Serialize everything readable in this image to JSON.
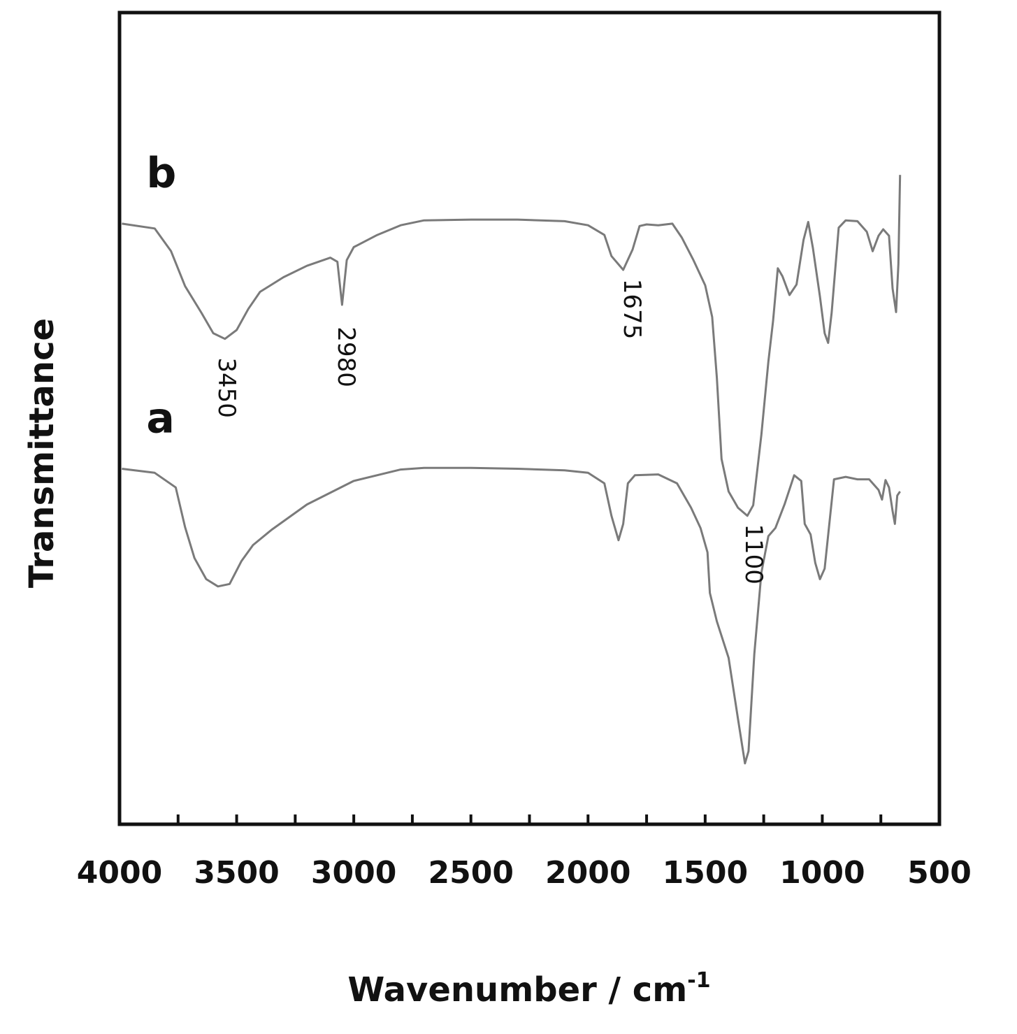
{
  "chart_data": {
    "type": "line",
    "title": "",
    "xlabel": "Wavenumber / cm",
    "xlabel_superscript": "-1",
    "ylabel": "Transmittance",
    "xlim": [
      4000,
      500
    ],
    "ylim": [
      0,
      100
    ],
    "x_reversed": true,
    "y_ticks_shown": false,
    "grid": false,
    "x_ticks": [
      4000,
      3500,
      3000,
      2500,
      2000,
      1500,
      1000,
      500
    ],
    "x_tick_labels": [
      "4000",
      "3500",
      "3000",
      "2500",
      "2000",
      "1500",
      "1000",
      "500"
    ],
    "line_color": "#7a7a7a",
    "series": [
      {
        "name": "b",
        "points": [
          [
            3990,
            74.0
          ],
          [
            3850,
            73.4
          ],
          [
            3780,
            70.6
          ],
          [
            3720,
            66.3
          ],
          [
            3650,
            63.0
          ],
          [
            3600,
            60.5
          ],
          [
            3550,
            59.8
          ],
          [
            3500,
            60.9
          ],
          [
            3450,
            63.5
          ],
          [
            3400,
            65.6
          ],
          [
            3300,
            67.4
          ],
          [
            3200,
            68.8
          ],
          [
            3100,
            69.8
          ],
          [
            3070,
            69.3
          ],
          [
            3050,
            64.0
          ],
          [
            3030,
            69.5
          ],
          [
            3000,
            71.1
          ],
          [
            2900,
            72.6
          ],
          [
            2800,
            73.8
          ],
          [
            2700,
            74.4
          ],
          [
            2500,
            74.5
          ],
          [
            2300,
            74.5
          ],
          [
            2100,
            74.3
          ],
          [
            2000,
            73.8
          ],
          [
            1930,
            72.6
          ],
          [
            1900,
            70.0
          ],
          [
            1850,
            68.3
          ],
          [
            1810,
            70.8
          ],
          [
            1780,
            73.7
          ],
          [
            1750,
            73.9
          ],
          [
            1700,
            73.8
          ],
          [
            1640,
            74.0
          ],
          [
            1600,
            72.3
          ],
          [
            1550,
            69.5
          ],
          [
            1500,
            66.4
          ],
          [
            1470,
            62.5
          ],
          [
            1450,
            55.0
          ],
          [
            1430,
            45.0
          ],
          [
            1400,
            41.0
          ],
          [
            1360,
            39.0
          ],
          [
            1320,
            38.0
          ],
          [
            1295,
            39.3
          ],
          [
            1260,
            48.0
          ],
          [
            1230,
            57.0
          ],
          [
            1210,
            62.0
          ],
          [
            1190,
            68.5
          ],
          [
            1170,
            67.5
          ],
          [
            1140,
            65.2
          ],
          [
            1110,
            66.5
          ],
          [
            1080,
            72.0
          ],
          [
            1060,
            74.2
          ],
          [
            1040,
            71.0
          ],
          [
            1010,
            65.0
          ],
          [
            990,
            60.5
          ],
          [
            975,
            59.3
          ],
          [
            960,
            63.0
          ],
          [
            930,
            73.5
          ],
          [
            900,
            74.4
          ],
          [
            850,
            74.3
          ],
          [
            810,
            73.0
          ],
          [
            785,
            70.6
          ],
          [
            760,
            72.5
          ],
          [
            740,
            73.3
          ],
          [
            715,
            72.5
          ],
          [
            700,
            66.0
          ],
          [
            685,
            63.1
          ],
          [
            675,
            69.0
          ],
          [
            668,
            80.0
          ]
        ]
      },
      {
        "name": "a",
        "points": [
          [
            3990,
            43.8
          ],
          [
            3850,
            43.3
          ],
          [
            3760,
            41.5
          ],
          [
            3720,
            36.6
          ],
          [
            3680,
            32.8
          ],
          [
            3630,
            30.2
          ],
          [
            3580,
            29.3
          ],
          [
            3530,
            29.6
          ],
          [
            3480,
            32.4
          ],
          [
            3430,
            34.4
          ],
          [
            3350,
            36.3
          ],
          [
            3200,
            39.4
          ],
          [
            3000,
            42.3
          ],
          [
            2800,
            43.7
          ],
          [
            2700,
            43.9
          ],
          [
            2500,
            43.9
          ],
          [
            2300,
            43.8
          ],
          [
            2100,
            43.6
          ],
          [
            2000,
            43.3
          ],
          [
            1930,
            42.0
          ],
          [
            1900,
            38.0
          ],
          [
            1870,
            35.0
          ],
          [
            1850,
            37.0
          ],
          [
            1830,
            42.0
          ],
          [
            1800,
            43.0
          ],
          [
            1700,
            43.1
          ],
          [
            1620,
            42.0
          ],
          [
            1560,
            39.0
          ],
          [
            1520,
            36.5
          ],
          [
            1490,
            33.5
          ],
          [
            1480,
            28.5
          ],
          [
            1450,
            25.0
          ],
          [
            1400,
            20.5
          ],
          [
            1360,
            13.0
          ],
          [
            1330,
            7.5
          ],
          [
            1315,
            9.0
          ],
          [
            1290,
            21.0
          ],
          [
            1260,
            31.0
          ],
          [
            1230,
            35.5
          ],
          [
            1200,
            36.5
          ],
          [
            1160,
            39.5
          ],
          [
            1120,
            43.0
          ],
          [
            1090,
            42.3
          ],
          [
            1075,
            37.0
          ],
          [
            1050,
            35.7
          ],
          [
            1030,
            32.2
          ],
          [
            1010,
            30.2
          ],
          [
            990,
            31.5
          ],
          [
            970,
            37.0
          ],
          [
            950,
            42.5
          ],
          [
            900,
            42.8
          ],
          [
            850,
            42.5
          ],
          [
            800,
            42.5
          ],
          [
            760,
            41.2
          ],
          [
            745,
            40.0
          ],
          [
            730,
            42.4
          ],
          [
            715,
            41.5
          ],
          [
            700,
            38.6
          ],
          [
            690,
            37.0
          ],
          [
            680,
            40.5
          ],
          [
            668,
            41.0
          ]
        ]
      }
    ],
    "annotations": [
      {
        "text": "3450",
        "x": 3540,
        "y": 57.5,
        "rotation": 90
      },
      {
        "text": "2980",
        "x": 3030,
        "y": 61.3,
        "rotation": 90
      },
      {
        "text": "1675",
        "x": 1810,
        "y": 67.2,
        "rotation": 90
      },
      {
        "text": "1100",
        "x": 1290,
        "y": 37.0,
        "rotation": 90
      }
    ]
  }
}
